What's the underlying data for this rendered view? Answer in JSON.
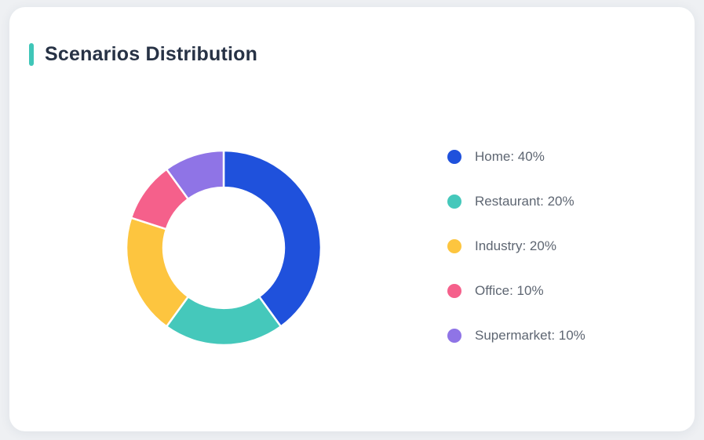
{
  "page": {
    "background_color": "#eef0f3"
  },
  "card": {
    "title": "Scenarios Distribution",
    "accent_color": "#3fc6b8",
    "title_color": "#273245"
  },
  "chart_data": {
    "type": "pie",
    "subtype": "donut",
    "title": "Scenarios Distribution",
    "categories": [
      "Home",
      "Restaurant",
      "Industry",
      "Office",
      "Supermarket"
    ],
    "values": [
      40,
      20,
      20,
      10,
      10
    ],
    "unit": "%",
    "colors": [
      "#1f51dc",
      "#45c8bb",
      "#fdc53f",
      "#f5608b",
      "#8f74e6"
    ],
    "legend_labels": [
      "Home: 40%",
      "Restaurant: 20%",
      "Industry: 20%",
      "Office: 10%",
      "Supermarket: 10%"
    ],
    "legend_position": "right",
    "start_angle_deg": 0,
    "direction": "clockwise",
    "inner_radius_ratio": 0.62,
    "segment_gap_color": "#ffffff"
  }
}
